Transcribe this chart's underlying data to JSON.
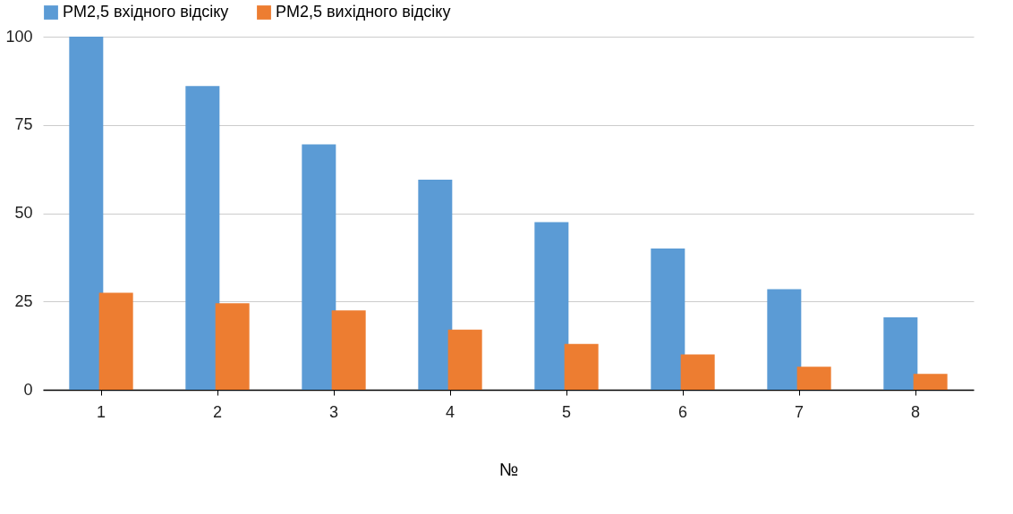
{
  "chart_data": {
    "type": "bar",
    "xlabel": "№",
    "categories": [
      "1",
      "2",
      "3",
      "4",
      "5",
      "6",
      "7",
      "8"
    ],
    "series": [
      {
        "name": "PM2,5 вхідного відсіку",
        "color": "#5b9bd5",
        "values": [
          100,
          86,
          69.5,
          59.5,
          47.5,
          40,
          28.5,
          20.5
        ]
      },
      {
        "name": "PM2,5 вихідного відсіку",
        "color": "#ed7d31",
        "values": [
          27.5,
          24.5,
          22.5,
          17,
          13,
          10,
          6.5,
          4.5
        ]
      }
    ],
    "ylim": [
      0,
      100
    ],
    "yticks": [
      0,
      25,
      50,
      75,
      100
    ],
    "grid": "y",
    "legend": "top"
  }
}
